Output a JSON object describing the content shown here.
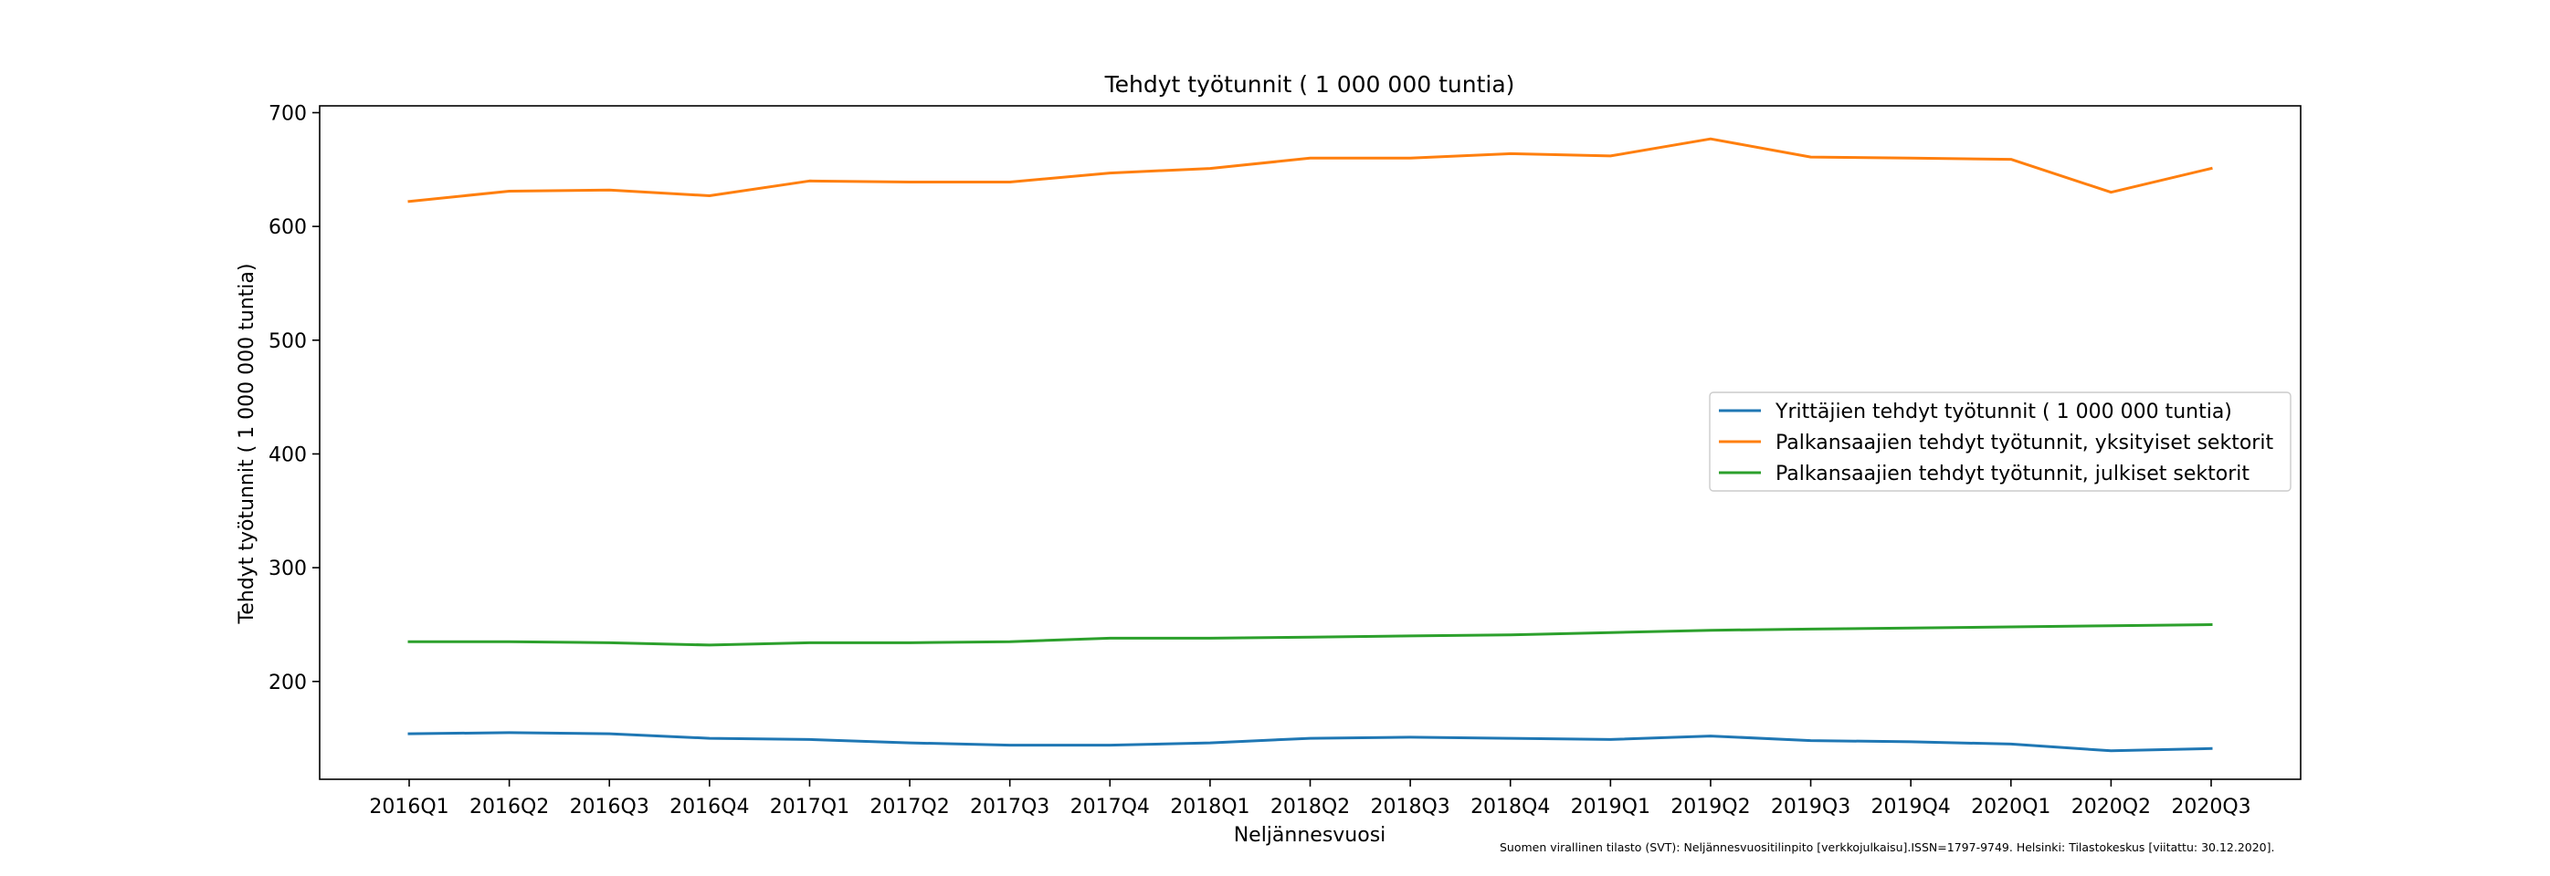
{
  "chart_data": {
    "type": "line",
    "title": "Tehdyt työtunnit ( 1 000 000 tuntia)",
    "xlabel": "Neljännesvuosi",
    "ylabel": "Tehdyt työtunnit ( 1 000 000 tuntia)",
    "ylim": [
      114,
      706
    ],
    "yticks": [
      200,
      300,
      400,
      500,
      600,
      700
    ],
    "grid": false,
    "legend_position": "center-right",
    "categories": [
      "2016Q1",
      "2016Q2",
      "2016Q3",
      "2016Q4",
      "2017Q1",
      "2017Q2",
      "2017Q3",
      "2017Q4",
      "2018Q1",
      "2018Q2",
      "2018Q3",
      "2018Q4",
      "2019Q1",
      "2019Q2",
      "2019Q3",
      "2019Q4",
      "2020Q1",
      "2020Q2",
      "2020Q3"
    ],
    "series": [
      {
        "name": "Yrittäjien tehdyt työtunnit ( 1 000 000 tuntia)",
        "color": "#1f77b4",
        "values": [
          154,
          155,
          154,
          150,
          149,
          146,
          144,
          144,
          146,
          150,
          151,
          150,
          149,
          152,
          148,
          147,
          145,
          139,
          141
        ]
      },
      {
        "name": "Palkansaajien tehdyt työtunnit, yksityiset sektorit",
        "color": "#ff7f0e",
        "values": [
          622,
          631,
          632,
          627,
          640,
          639,
          639,
          647,
          651,
          660,
          660,
          664,
          662,
          677,
          661,
          660,
          659,
          630,
          651
        ]
      },
      {
        "name": "Palkansaajien tehdyt työtunnit, julkiset sektorit",
        "color": "#2ca02c",
        "values": [
          235,
          235,
          234,
          232,
          234,
          234,
          235,
          238,
          238,
          239,
          240,
          241,
          243,
          245,
          246,
          247,
          248,
          249,
          250
        ]
      }
    ],
    "source_note": "Suomen virallinen tilasto (SVT): Neljännesvuositilinpito [verkkojulkaisu].ISSN=1797-9749. Helsinki: Tilastokeskus [viitattu: 30.12.2020]."
  }
}
